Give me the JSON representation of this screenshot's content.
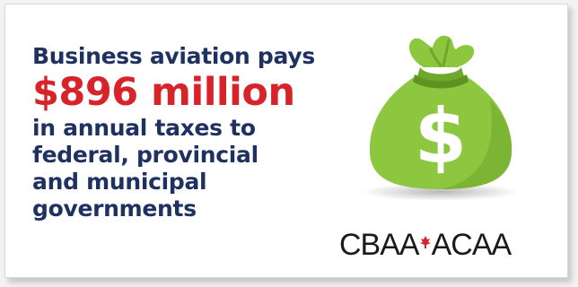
{
  "headline": "Business aviation pays",
  "amount": "$896 million",
  "body_lines": [
    "in annual taxes to",
    "federal, provincial",
    "and municipal",
    "governments"
  ],
  "illustration": {
    "icon": "money-bag-icon",
    "symbol": "$",
    "bag_color": "#8dc63f",
    "bag_shade": "#6fa82a"
  },
  "logo": {
    "left": "CBAA",
    "right": "ACAA",
    "icon": "maple-leaf-icon",
    "accent_color": "#d8232a"
  },
  "colors": {
    "navy": "#1f3160",
    "red": "#d8232a"
  }
}
